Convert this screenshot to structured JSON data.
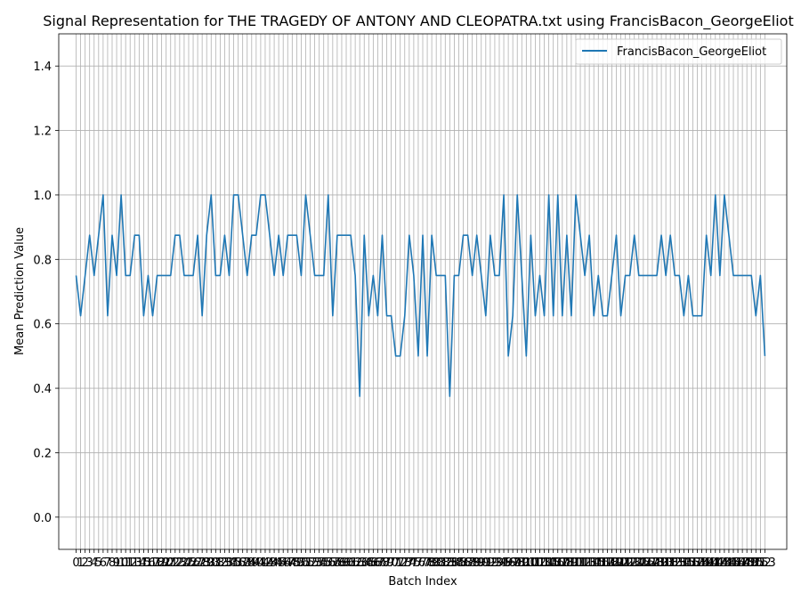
{
  "chart_data": {
    "type": "line",
    "title": "Signal Representation for THE TRAGEDY OF ANTONY AND CLEOPATRA.txt using FrancisBacon_GeorgeEliot",
    "xlabel": "Batch Index",
    "ylabel": "Mean Prediction Value",
    "ylim": [
      -0.1,
      1.5
    ],
    "yticks": [
      "0.0",
      "0.2",
      "0.4",
      "0.6",
      "0.8",
      "1.0",
      "1.2",
      "1.4"
    ],
    "xlim": [
      -3.86,
      157.86
    ],
    "grid": true,
    "legend": "top-right",
    "line_color": "#1f77b4",
    "grid_color": "#b0b0b0",
    "series": [
      {
        "name": "FrancisBacon_GeorgeEliot",
        "x": [
          0,
          1,
          2,
          3,
          4,
          5,
          6,
          7,
          8,
          9,
          10,
          11,
          12,
          13,
          14,
          15,
          16,
          17,
          18,
          19,
          20,
          21,
          22,
          23,
          24,
          25,
          26,
          27,
          28,
          29,
          30,
          31,
          32,
          33,
          34,
          35,
          36,
          37,
          38,
          39,
          40,
          41,
          42,
          43,
          44,
          45,
          46,
          47,
          48,
          49,
          50,
          51,
          52,
          53,
          54,
          55,
          56,
          57,
          58,
          59,
          60,
          61,
          62,
          63,
          64,
          65,
          66,
          67,
          68,
          69,
          70,
          71,
          72,
          73,
          74,
          75,
          76,
          77,
          78,
          79,
          80,
          81,
          82,
          83,
          84,
          85,
          86,
          87,
          88,
          89,
          90,
          91,
          92,
          93,
          94,
          95,
          96,
          97,
          98,
          99,
          100,
          101,
          102,
          103,
          104,
          105,
          106,
          107,
          108,
          109,
          110,
          111,
          112,
          113,
          114,
          115,
          116,
          117,
          118,
          119,
          120,
          121,
          122,
          123,
          124,
          125,
          126,
          127,
          128,
          129,
          130,
          131,
          132,
          133,
          134,
          135,
          136,
          137,
          138,
          139,
          140,
          141,
          142,
          143,
          144,
          145,
          146,
          147,
          148,
          149,
          150,
          151,
          152,
          153
        ],
        "values": [
          0.75,
          0.625,
          0.75,
          0.875,
          0.75,
          0.875,
          1.0,
          0.625,
          0.875,
          0.75,
          1.0,
          0.75,
          0.75,
          0.875,
          0.875,
          0.625,
          0.75,
          0.625,
          0.75,
          0.75,
          0.75,
          0.75,
          0.875,
          0.875,
          0.75,
          0.75,
          0.75,
          0.875,
          0.625,
          0.875,
          1.0,
          0.75,
          0.75,
          0.875,
          0.75,
          1.0,
          1.0,
          0.875,
          0.75,
          0.875,
          0.875,
          1.0,
          1.0,
          0.875,
          0.75,
          0.875,
          0.75,
          0.875,
          0.875,
          0.875,
          0.75,
          1.0,
          0.875,
          0.75,
          0.75,
          0.75,
          1.0,
          0.625,
          0.875,
          0.875,
          0.875,
          0.875,
          0.75,
          0.375,
          0.875,
          0.625,
          0.75,
          0.625,
          0.875,
          0.625,
          0.625,
          0.5,
          0.5,
          0.625,
          0.875,
          0.75,
          0.5,
          0.875,
          0.5,
          0.875,
          0.75,
          0.75,
          0.75,
          0.375,
          0.75,
          0.75,
          0.875,
          0.875,
          0.75,
          0.875,
          0.75,
          0.625,
          0.875,
          0.75,
          0.75,
          1.0,
          0.5,
          0.625,
          1.0,
          0.75,
          0.5,
          0.875,
          0.625,
          0.75,
          0.625,
          1.0,
          0.625,
          1.0,
          0.625,
          0.875,
          0.625,
          1.0,
          0.875,
          0.75,
          0.875,
          0.625,
          0.75,
          0.625,
          0.625,
          0.75,
          0.875,
          0.625,
          0.75,
          0.75,
          0.875,
          0.75,
          0.75,
          0.75,
          0.75,
          0.75,
          0.875,
          0.75,
          0.875,
          0.75,
          0.75,
          0.625,
          0.75,
          0.625,
          0.625,
          0.625,
          0.875,
          0.75,
          1.0,
          0.75,
          1.0,
          0.875,
          0.75,
          0.75,
          0.75,
          0.75,
          0.75,
          0.625,
          0.75,
          0.5
        ]
      }
    ]
  }
}
